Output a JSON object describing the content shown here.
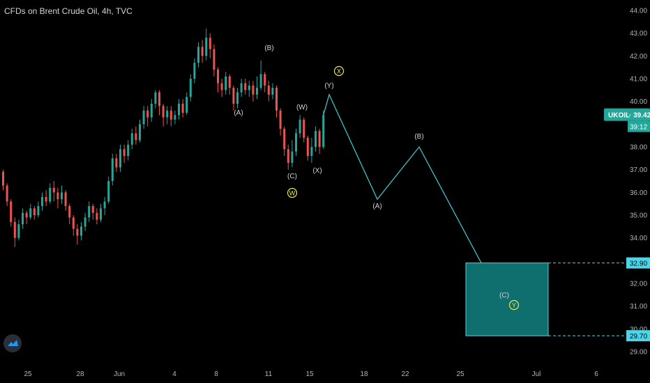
{
  "header": {
    "title": "CFDs on Brent Crude Oil, 4h, TVC"
  },
  "colors": {
    "up": "#26a69a",
    "down": "#ef5350",
    "bg": "#000000",
    "path": "#3fc1c9",
    "target_box": "#0f6e6e",
    "label": "#d1d4dc",
    "circle": "#e8e84a",
    "price_badge": "#26a69a",
    "target_line": "#4fd3e6"
  },
  "price_axis": {
    "ticks": [
      "44.00",
      "43.00",
      "42.00",
      "41.00",
      "40.00",
      "39.00",
      "38.00",
      "37.00",
      "36.00",
      "35.00",
      "34.00",
      "33.00",
      "32.00",
      "31.00",
      "30.00",
      "29.00"
    ]
  },
  "current_price": {
    "symbol": "UKOIL",
    "price": "39.42",
    "countdown": "39:12"
  },
  "target_levels": {
    "upper": "32.90",
    "lower": "29.70"
  },
  "chart_data": {
    "type": "candlestick",
    "title": "CFDs on Brent Crude Oil, 4h, TVC",
    "x_ticks": [
      "25",
      "28",
      "Jun",
      "4",
      "8",
      "11",
      "15",
      "18",
      "22",
      "25",
      "Jul",
      "6"
    ],
    "y_range": [
      28.5,
      44.2
    ],
    "candles": [
      [
        36.9,
        36.3,
        36.1,
        37.0
      ],
      [
        36.3,
        35.6,
        35.4,
        36.4
      ],
      [
        35.6,
        34.7,
        34.5,
        35.7
      ],
      [
        34.7,
        34.0,
        33.6,
        34.9
      ],
      [
        34.0,
        34.6,
        33.9,
        34.8
      ],
      [
        34.6,
        35.1,
        34.4,
        35.3
      ],
      [
        35.1,
        34.9,
        34.6,
        35.2
      ],
      [
        34.9,
        35.3,
        34.8,
        35.5
      ],
      [
        35.3,
        35.0,
        34.8,
        35.4
      ],
      [
        35.0,
        35.4,
        34.9,
        35.6
      ],
      [
        35.4,
        35.8,
        35.2,
        36.0
      ],
      [
        35.8,
        35.6,
        35.4,
        36.1
      ],
      [
        35.6,
        36.2,
        35.5,
        36.4
      ],
      [
        36.2,
        36.0,
        35.6,
        36.5
      ],
      [
        36.0,
        35.7,
        35.3,
        36.2
      ],
      [
        35.7,
        36.0,
        35.5,
        36.3
      ],
      [
        36.0,
        35.4,
        35.2,
        36.1
      ],
      [
        35.4,
        34.9,
        34.6,
        35.5
      ],
      [
        34.9,
        34.4,
        34.1,
        35.0
      ],
      [
        34.4,
        34.1,
        33.7,
        34.6
      ],
      [
        34.1,
        34.5,
        33.9,
        34.7
      ],
      [
        34.5,
        34.9,
        34.3,
        35.1
      ],
      [
        34.9,
        35.4,
        34.7,
        35.6
      ],
      [
        35.4,
        35.1,
        34.8,
        35.5
      ],
      [
        35.1,
        34.8,
        34.6,
        35.3
      ],
      [
        34.8,
        35.3,
        34.7,
        35.5
      ],
      [
        35.3,
        35.6,
        35.0,
        35.8
      ],
      [
        35.6,
        36.5,
        35.5,
        36.7
      ],
      [
        36.5,
        37.5,
        36.3,
        37.7
      ],
      [
        37.5,
        37.1,
        36.9,
        37.7
      ],
      [
        37.1,
        37.9,
        36.9,
        38.1
      ],
      [
        37.9,
        37.6,
        37.3,
        38.1
      ],
      [
        37.6,
        38.1,
        37.4,
        38.3
      ],
      [
        38.1,
        38.6,
        37.9,
        38.8
      ],
      [
        38.6,
        38.3,
        38.1,
        38.9
      ],
      [
        38.3,
        39.0,
        38.2,
        39.2
      ],
      [
        39.0,
        39.6,
        38.8,
        39.8
      ],
      [
        39.6,
        39.3,
        38.9,
        39.8
      ],
      [
        39.3,
        39.9,
        39.1,
        40.1
      ],
      [
        39.9,
        40.4,
        39.7,
        40.5
      ],
      [
        40.4,
        39.8,
        39.4,
        40.5
      ],
      [
        39.8,
        39.3,
        38.9,
        39.9
      ],
      [
        39.3,
        39.6,
        39.0,
        39.8
      ],
      [
        39.6,
        39.2,
        38.9,
        39.8
      ],
      [
        39.2,
        39.4,
        39.0,
        39.6
      ],
      [
        39.4,
        39.9,
        39.2,
        40.1
      ],
      [
        39.9,
        39.5,
        39.3,
        40.1
      ],
      [
        39.5,
        40.2,
        39.4,
        40.4
      ],
      [
        40.2,
        41.0,
        40.0,
        41.2
      ],
      [
        41.0,
        41.7,
        40.8,
        41.9
      ],
      [
        41.7,
        42.4,
        41.5,
        42.6
      ],
      [
        42.4,
        42.0,
        41.7,
        42.7
      ],
      [
        42.0,
        42.8,
        41.8,
        43.2
      ],
      [
        42.8,
        42.3,
        41.9,
        43.0
      ],
      [
        42.3,
        41.4,
        41.1,
        42.5
      ],
      [
        41.4,
        40.8,
        40.4,
        41.5
      ],
      [
        40.8,
        40.5,
        40.2,
        41.0
      ],
      [
        40.5,
        41.1,
        40.3,
        41.3
      ],
      [
        41.1,
        40.6,
        40.3,
        41.2
      ],
      [
        40.6,
        39.9,
        39.6,
        40.7
      ],
      [
        39.9,
        40.4,
        39.7,
        40.6
      ],
      [
        40.4,
        40.8,
        40.2,
        41.0
      ],
      [
        40.8,
        40.5,
        40.3,
        41.0
      ],
      [
        40.5,
        40.7,
        40.2,
        40.9
      ],
      [
        40.7,
        40.3,
        40.0,
        40.9
      ],
      [
        40.3,
        40.6,
        40.1,
        41.1
      ],
      [
        40.6,
        41.2,
        40.5,
        41.8
      ],
      [
        41.2,
        40.7,
        40.4,
        41.3
      ],
      [
        40.7,
        40.3,
        40.0,
        40.9
      ],
      [
        40.3,
        40.6,
        40.1,
        40.8
      ],
      [
        40.6,
        39.6,
        39.3,
        40.7
      ],
      [
        39.6,
        38.8,
        38.5,
        39.7
      ],
      [
        38.8,
        37.9,
        37.6,
        38.9
      ],
      [
        37.9,
        37.3,
        37.0,
        38.1
      ],
      [
        37.3,
        37.8,
        37.1,
        38.3
      ],
      [
        37.8,
        38.6,
        37.6,
        38.8
      ],
      [
        38.6,
        39.2,
        38.4,
        39.4
      ],
      [
        39.2,
        38.4,
        38.2,
        39.3
      ],
      [
        38.4,
        37.6,
        37.4,
        38.5
      ],
      [
        37.6,
        38.0,
        37.3,
        38.4
      ],
      [
        38.0,
        38.7,
        37.8,
        38.9
      ],
      [
        38.7,
        38.0,
        37.7,
        38.8
      ],
      [
        38.0,
        39.4,
        37.9,
        39.6
      ]
    ],
    "projection": [
      {
        "label": "(Y)",
        "price": 40.3
      },
      {
        "label": "(A)",
        "price": 35.7
      },
      {
        "label": "(B)",
        "price": 38.0
      },
      {
        "label": "(C)",
        "price": 32.9
      }
    ],
    "wave_labels": [
      "(B)",
      "(A)",
      "(W)",
      "(C)",
      "(X)",
      "(Y)",
      "(A)",
      "(B)",
      "(C)"
    ],
    "circle_labels": [
      "X",
      "W",
      "Y"
    ],
    "target_zone": {
      "upper": 32.9,
      "lower": 29.7
    }
  }
}
